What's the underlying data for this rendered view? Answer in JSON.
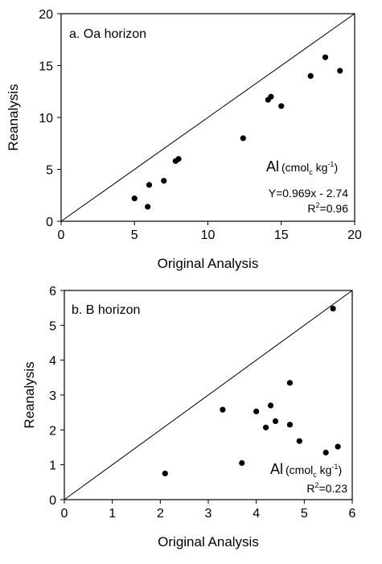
{
  "chart_data": [
    {
      "type": "scatter",
      "panel_label": "a. Oa horizon",
      "xlabel": "Original Analysis",
      "ylabel": "Reanalysis",
      "xlim": [
        0,
        20
      ],
      "ylim": [
        0,
        20
      ],
      "xticks": [
        "0",
        "5",
        "10",
        "15",
        "20"
      ],
      "yticks": [
        "0",
        "5",
        "10",
        "15",
        "20"
      ],
      "x": [
        5.0,
        5.9,
        6.0,
        7.0,
        7.8,
        8.0,
        12.4,
        14.1,
        14.3,
        15.0,
        17.0,
        18.0,
        19.0
      ],
      "y": [
        2.2,
        1.4,
        3.5,
        3.9,
        5.8,
        6.0,
        8.0,
        11.7,
        12.0,
        11.1,
        14.0,
        15.8,
        14.5
      ],
      "reference_line": "1:1",
      "annotation": {
        "element": "Al",
        "unit_open": "(cmol",
        "unit_sub": "c",
        "unit_mid": " kg",
        "unit_sup": "-1",
        "unit_close": ")",
        "equation": "Y=0.969x - 2.74",
        "r2_prefix": "R",
        "r2_sup": "2",
        "r2_value": "=0.96"
      }
    },
    {
      "type": "scatter",
      "panel_label": "b. B horizon",
      "xlabel": "Original Analysis",
      "ylabel": "Reanalysis",
      "xlim": [
        0,
        6
      ],
      "ylim": [
        0,
        6
      ],
      "xticks": [
        "0",
        "1",
        "2",
        "3",
        "4",
        "5",
        "6"
      ],
      "yticks": [
        "0",
        "1",
        "2",
        "3",
        "4",
        "5",
        "6"
      ],
      "x": [
        2.1,
        3.3,
        3.7,
        4.0,
        4.2,
        4.3,
        4.4,
        4.7,
        4.7,
        4.9,
        5.45,
        5.6,
        5.7
      ],
      "y": [
        0.75,
        2.58,
        1.05,
        2.53,
        2.07,
        2.7,
        2.25,
        2.15,
        3.35,
        1.68,
        1.35,
        5.48,
        1.52
      ],
      "reference_line": "1:1",
      "annotation": {
        "element": "Al",
        "unit_open": "(cmol",
        "unit_sub": "c",
        "unit_mid": " kg",
        "unit_sup": "-1",
        "unit_close": ")",
        "r2_prefix": "R",
        "r2_sup": "2",
        "r2_value": "=0.23"
      }
    }
  ]
}
